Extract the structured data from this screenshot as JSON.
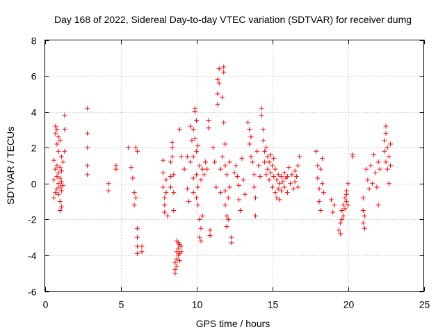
{
  "chart_data": {
    "type": "scatter",
    "title": "Day 168 of 2022, Sidereal Day-to-day VTEC variation (SDTVAR) for receiver dumg",
    "xlabel": "GPS time / hours",
    "ylabel": "SDTVAR / TECUs",
    "xlim": [
      0,
      25
    ],
    "ylim": [
      -6,
      8
    ],
    "xticks": [
      0,
      5,
      10,
      15,
      20,
      25
    ],
    "yticks": [
      -6,
      -4,
      -2,
      0,
      2,
      4,
      6,
      8
    ],
    "grid": true,
    "marker": "+",
    "color": "#ff0000",
    "series": [
      {
        "name": "SDTVAR",
        "points": [
          [
            0.6,
            -0.8
          ],
          [
            0.6,
            0.2
          ],
          [
            0.6,
            1.3
          ],
          [
            0.7,
            -0.5
          ],
          [
            0.7,
            0.8
          ],
          [
            0.7,
            2.8
          ],
          [
            0.7,
            3.2
          ],
          [
            0.8,
            -0.3
          ],
          [
            0.8,
            0.4
          ],
          [
            0.8,
            1.0
          ],
          [
            0.8,
            2.2
          ],
          [
            0.8,
            3.0
          ],
          [
            0.9,
            -0.6
          ],
          [
            0.9,
            0.0
          ],
          [
            0.9,
            0.6
          ],
          [
            0.9,
            1.8
          ],
          [
            0.9,
            2.6
          ],
          [
            1.0,
            -1.5
          ],
          [
            1.0,
            -1.0
          ],
          [
            1.0,
            -0.2
          ],
          [
            1.0,
            0.3
          ],
          [
            1.0,
            0.9
          ],
          [
            1.0,
            2.4
          ],
          [
            1.1,
            -1.3
          ],
          [
            1.1,
            -0.4
          ],
          [
            1.1,
            0.1
          ],
          [
            1.1,
            0.7
          ],
          [
            1.1,
            1.5
          ],
          [
            1.2,
            -0.1
          ],
          [
            1.2,
            1.2
          ],
          [
            1.3,
            1.8
          ],
          [
            1.3,
            3.0
          ],
          [
            1.3,
            3.8
          ],
          [
            2.8,
            4.2
          ],
          [
            2.8,
            2.8
          ],
          [
            2.8,
            2.0
          ],
          [
            2.8,
            1.0
          ],
          [
            2.8,
            0.5
          ],
          [
            4.2,
            0.0
          ],
          [
            4.2,
            -0.4
          ],
          [
            4.7,
            1.0
          ],
          [
            4.7,
            0.8
          ],
          [
            5.5,
            2.0
          ],
          [
            5.7,
            0.9
          ],
          [
            5.8,
            0.3
          ],
          [
            5.9,
            -0.5
          ],
          [
            5.9,
            -1.2
          ],
          [
            6.0,
            -0.8
          ],
          [
            6.0,
            2.0
          ],
          [
            6.1,
            1.8
          ],
          [
            6.1,
            -2.5
          ],
          [
            6.1,
            -3.0
          ],
          [
            6.1,
            -3.5
          ],
          [
            6.1,
            -3.9
          ],
          [
            6.4,
            -3.5
          ],
          [
            6.4,
            -3.8
          ],
          [
            7.8,
            1.3
          ],
          [
            7.8,
            0.6
          ],
          [
            7.8,
            -0.2
          ],
          [
            7.9,
            -0.8
          ],
          [
            7.9,
            -1.2
          ],
          [
            7.9,
            -1.6
          ],
          [
            8.0,
            0.2
          ],
          [
            8.0,
            -0.5
          ],
          [
            8.1,
            -1.8
          ],
          [
            8.3,
            1.2
          ],
          [
            8.3,
            0.4
          ],
          [
            8.3,
            -0.2
          ],
          [
            8.4,
            1.5
          ],
          [
            8.4,
            2.0
          ],
          [
            8.4,
            2.3
          ],
          [
            8.5,
            0.5
          ],
          [
            8.5,
            -0.5
          ],
          [
            8.5,
            -1.5
          ],
          [
            8.6,
            -4.4
          ],
          [
            8.6,
            -4.8
          ],
          [
            8.6,
            -5.0
          ],
          [
            8.7,
            -3.2
          ],
          [
            8.7,
            -3.8
          ],
          [
            8.7,
            -4.2
          ],
          [
            8.7,
            -4.6
          ],
          [
            8.8,
            -3.3
          ],
          [
            8.8,
            -3.6
          ],
          [
            8.8,
            -4.0
          ],
          [
            8.9,
            -3.4
          ],
          [
            8.9,
            -3.9
          ],
          [
            8.9,
            -4.3
          ],
          [
            9.0,
            -3.5
          ],
          [
            9.0,
            -3.8
          ],
          [
            8.9,
            3.0
          ],
          [
            9.0,
            1.5
          ],
          [
            9.2,
            0.8
          ],
          [
            9.4,
            -0.3
          ],
          [
            9.4,
            1.5
          ],
          [
            9.5,
            -1.0
          ],
          [
            9.6,
            1.2
          ],
          [
            9.6,
            3.2
          ],
          [
            9.7,
            2.4
          ],
          [
            9.8,
            3.0
          ],
          [
            9.8,
            -0.5
          ],
          [
            9.8,
            0.3
          ],
          [
            9.8,
            1.5
          ],
          [
            9.9,
            2.5
          ],
          [
            9.9,
            4.0
          ],
          [
            9.9,
            4.2
          ],
          [
            10.0,
            3.5
          ],
          [
            10.0,
            1.8
          ],
          [
            10.0,
            0.5
          ],
          [
            10.0,
            -0.8
          ],
          [
            10.1,
            2.1
          ],
          [
            10.1,
            -0.2
          ],
          [
            10.1,
            -1.2
          ],
          [
            10.2,
            1.0
          ],
          [
            10.2,
            -2.0
          ],
          [
            10.2,
            -3.0
          ],
          [
            10.3,
            -2.5
          ],
          [
            10.3,
            -3.2
          ],
          [
            10.3,
            0.2
          ],
          [
            10.4,
            -1.8
          ],
          [
            10.4,
            0.8
          ],
          [
            10.5,
            0.5
          ],
          [
            10.6,
            1.2
          ],
          [
            10.7,
            0.8
          ],
          [
            10.8,
            3.5
          ],
          [
            10.8,
            3.1
          ],
          [
            10.9,
            -2.6
          ],
          [
            10.9,
            -2.9
          ],
          [
            11.1,
            2.0
          ],
          [
            11.2,
            1.2
          ],
          [
            11.3,
            -0.2
          ],
          [
            11.4,
            4.4
          ],
          [
            11.4,
            5.0
          ],
          [
            11.4,
            5.8
          ],
          [
            11.5,
            6.4
          ],
          [
            11.5,
            5.6
          ],
          [
            11.6,
            0.8
          ],
          [
            11.6,
            -0.5
          ],
          [
            11.7,
            1.5
          ],
          [
            11.7,
            4.8
          ],
          [
            11.8,
            6.5
          ],
          [
            11.8,
            6.2
          ],
          [
            11.8,
            3.4
          ],
          [
            11.9,
            2.2
          ],
          [
            11.9,
            1.0
          ],
          [
            11.9,
            -0.4
          ],
          [
            11.9,
            -1.2
          ],
          [
            12.0,
            0.5
          ],
          [
            12.0,
            -1.8
          ],
          [
            12.0,
            -2.4
          ],
          [
            12.1,
            -0.8
          ],
          [
            12.1,
            -2.0
          ],
          [
            12.2,
            1.2
          ],
          [
            12.2,
            -0.2
          ],
          [
            12.3,
            -3.0
          ],
          [
            12.3,
            -3.3
          ],
          [
            12.5,
            0.6
          ],
          [
            12.6,
            1.0
          ],
          [
            12.7,
            0.4
          ],
          [
            12.8,
            -0.1
          ],
          [
            12.8,
            -0.9
          ],
          [
            12.9,
            -1.5
          ],
          [
            13.0,
            1.4
          ],
          [
            13.1,
            0.2
          ],
          [
            13.2,
            -0.6
          ],
          [
            13.4,
            3.4
          ],
          [
            13.5,
            3.0
          ],
          [
            13.5,
            2.2
          ],
          [
            13.6,
            2.6
          ],
          [
            13.6,
            1.5
          ],
          [
            13.7,
            1.2
          ],
          [
            13.8,
            0.5
          ],
          [
            13.8,
            -0.2
          ],
          [
            13.9,
            -0.8
          ],
          [
            13.9,
            -1.8
          ],
          [
            14.0,
            1.8
          ],
          [
            14.1,
            1.0
          ],
          [
            14.2,
            0.4
          ],
          [
            14.3,
            4.2
          ],
          [
            14.3,
            3.8
          ],
          [
            14.4,
            3.0
          ],
          [
            14.4,
            2.4
          ],
          [
            14.5,
            1.8
          ],
          [
            14.5,
            1.2
          ],
          [
            14.6,
            0.5
          ],
          [
            14.6,
            2.0
          ],
          [
            14.7,
            1.5
          ],
          [
            14.7,
            0.8
          ],
          [
            14.8,
            1.2
          ],
          [
            14.8,
            0.2
          ],
          [
            14.9,
            1.6
          ],
          [
            14.9,
            0.6
          ],
          [
            15.0,
            1.0
          ],
          [
            15.0,
            -0.2
          ],
          [
            15.1,
            1.4
          ],
          [
            15.1,
            0.4
          ],
          [
            15.2,
            0.8
          ],
          [
            15.2,
            -0.5
          ],
          [
            15.3,
            0.2
          ],
          [
            15.3,
            -0.8
          ],
          [
            15.4,
            0.5
          ],
          [
            15.4,
            -0.3
          ],
          [
            15.5,
            0.0
          ],
          [
            15.5,
            -0.9
          ],
          [
            15.6,
            0.4
          ],
          [
            15.6,
            -0.4
          ],
          [
            15.7,
            0.1
          ],
          [
            15.8,
            0.6
          ],
          [
            15.8,
            -0.2
          ],
          [
            15.9,
            0.3
          ],
          [
            16.0,
            -0.5
          ],
          [
            16.0,
            0.4
          ],
          [
            16.1,
            0.9
          ],
          [
            16.2,
            0.0
          ],
          [
            16.3,
            0.5
          ],
          [
            16.4,
            -0.3
          ],
          [
            16.5,
            0.7
          ],
          [
            16.5,
            0.1
          ],
          [
            16.6,
            0.4
          ],
          [
            16.7,
            1.0
          ],
          [
            16.7,
            -0.2
          ],
          [
            16.8,
            1.5
          ],
          [
            17.9,
            1.8
          ],
          [
            18.0,
            1.0
          ],
          [
            18.0,
            0.3
          ],
          [
            18.1,
            -0.3
          ],
          [
            18.1,
            -1.0
          ],
          [
            18.2,
            0.8
          ],
          [
            18.2,
            -1.5
          ],
          [
            18.3,
            0.0
          ],
          [
            18.3,
            1.4
          ],
          [
            18.4,
            -0.5
          ],
          [
            18.9,
            -0.9
          ],
          [
            19.0,
            -1.6
          ],
          [
            19.1,
            -1.2
          ],
          [
            19.4,
            -2.6
          ],
          [
            19.5,
            -2.8
          ],
          [
            19.5,
            -2.2
          ],
          [
            19.6,
            -1.5
          ],
          [
            19.6,
            -2.0
          ],
          [
            19.7,
            -1.2
          ],
          [
            19.7,
            -1.8
          ],
          [
            19.8,
            -0.8
          ],
          [
            19.8,
            -1.4
          ],
          [
            19.9,
            -0.6
          ],
          [
            19.9,
            -1.0
          ],
          [
            19.9,
            -0.4
          ],
          [
            20.0,
            -1.2
          ],
          [
            20.0,
            0.0
          ],
          [
            20.3,
            1.6
          ],
          [
            20.3,
            1.5
          ],
          [
            21.0,
            -1.5
          ],
          [
            21.0,
            -2.2
          ],
          [
            21.0,
            -0.8
          ],
          [
            21.1,
            -1.8
          ],
          [
            21.1,
            -2.5
          ],
          [
            21.2,
            0.8
          ],
          [
            21.3,
            0.2
          ],
          [
            21.4,
            -0.3
          ],
          [
            21.5,
            1.0
          ],
          [
            21.6,
            0.0
          ],
          [
            21.7,
            1.6
          ],
          [
            21.8,
            0.6
          ],
          [
            21.9,
            -0.2
          ],
          [
            22.0,
            -1.2
          ],
          [
            22.0,
            1.2
          ],
          [
            22.1,
            0.8
          ],
          [
            22.4,
            2.4
          ],
          [
            22.4,
            1.8
          ],
          [
            22.5,
            3.2
          ],
          [
            22.5,
            2.8
          ],
          [
            22.5,
            1.2
          ],
          [
            22.6,
            2.0
          ],
          [
            22.6,
            0.8
          ],
          [
            22.7,
            1.5
          ],
          [
            22.7,
            0.0
          ],
          [
            22.8,
            2.2
          ],
          [
            22.8,
            1.0
          ]
        ]
      }
    ]
  }
}
